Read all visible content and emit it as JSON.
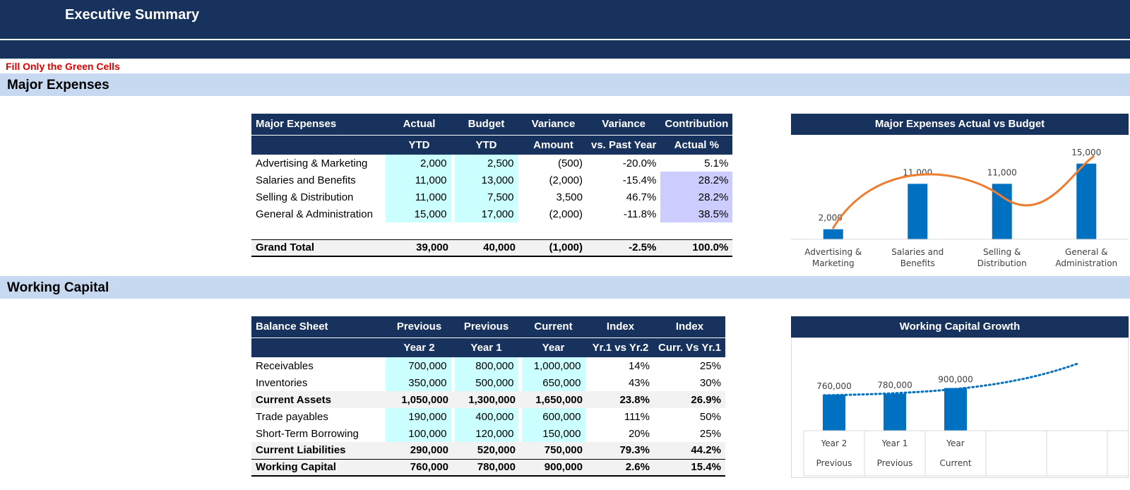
{
  "header": {
    "title": "Executive Summary"
  },
  "note": "Fill Only the Green Cells",
  "sections": {
    "expenses": "Major Expenses",
    "working_capital": "Working Capital"
  },
  "expenses_table": {
    "headers1": [
      "Major Expenses",
      "Actual",
      "Budget",
      "Variance",
      "Variance",
      "Contribution"
    ],
    "headers2": [
      "",
      "YTD",
      "YTD",
      "Amount",
      "vs. Past Year",
      "Actual %"
    ],
    "rows": [
      [
        "Advertising & Marketing",
        "2,000",
        "2,500",
        "(500)",
        "-20.0%",
        "5.1%"
      ],
      [
        "Salaries and Benefits",
        "11,000",
        "13,000",
        "(2,000)",
        "-15.4%",
        "28.2%"
      ],
      [
        "Selling & Distribution",
        "11,000",
        "7,500",
        "3,500",
        "46.7%",
        "28.2%"
      ],
      [
        "General & Administration",
        "15,000",
        "17,000",
        "(2,000)",
        "-11.8%",
        "38.5%"
      ]
    ],
    "total": [
      "Grand Total",
      "39,000",
      "40,000",
      "(1,000)",
      "-2.5%",
      "100.0%"
    ]
  },
  "balance_table": {
    "headers1": [
      "Balance Sheet",
      "Previous",
      "Previous",
      "Current",
      "Index",
      "Index"
    ],
    "headers2": [
      "",
      "Year 2",
      "Year 1",
      "Year",
      "Yr.1 vs Yr.2",
      "Curr. Vs Yr.1"
    ],
    "rows": [
      [
        "Receivables",
        "700,000",
        "800,000",
        "1,000,000",
        "14%",
        "25%"
      ],
      [
        "Inventories",
        "350,000",
        "500,000",
        "650,000",
        "43%",
        "30%"
      ],
      [
        "Current Assets",
        "1,050,000",
        "1,300,000",
        "1,650,000",
        "23.8%",
        "26.9%"
      ],
      [
        "Trade payables",
        "190,000",
        "400,000",
        "600,000",
        "111%",
        "50%"
      ],
      [
        "Short-Term Borrowing",
        "100,000",
        "120,000",
        "150,000",
        "20%",
        "25%"
      ],
      [
        "Current Liabilities",
        "290,000",
        "520,000",
        "750,000",
        "79.3%",
        "44.2%"
      ],
      [
        "Working Capital",
        "760,000",
        "780,000",
        "900,000",
        "2.6%",
        "15.4%"
      ]
    ]
  },
  "colors": {
    "navy": "#17325c",
    "green_input": "#ccffff",
    "purple": "#ccccff",
    "bar": "#0070c0",
    "trend": "#ed7d31"
  },
  "chart_data": [
    {
      "type": "bar",
      "title": "Major Expenses Actual vs Budget",
      "categories": [
        "Advertising & Marketing",
        "Salaries and Benefits",
        "Selling & Distribution",
        "General & Administration"
      ],
      "values": [
        2000,
        11000,
        11000,
        15000
      ],
      "data_labels": [
        "2,000",
        "11,000",
        "11,000",
        "15,000"
      ],
      "trendline": "polynomial",
      "ylim": [
        0,
        16000
      ]
    },
    {
      "type": "bar",
      "title": "Working Capital Growth",
      "categories": [
        "Year 2 Previous",
        "Year 1 Previous",
        "Year Current"
      ],
      "category_lines": [
        [
          "Year 2",
          "Previous"
        ],
        [
          "Year 1",
          "Previous"
        ],
        [
          "Year",
          "Current"
        ]
      ],
      "values": [
        760000,
        780000,
        900000
      ],
      "data_labels": [
        "760,000",
        "780,000",
        "900,000"
      ],
      "trendline": "exponential-dotted",
      "ylim": [
        0,
        1500000
      ]
    }
  ]
}
